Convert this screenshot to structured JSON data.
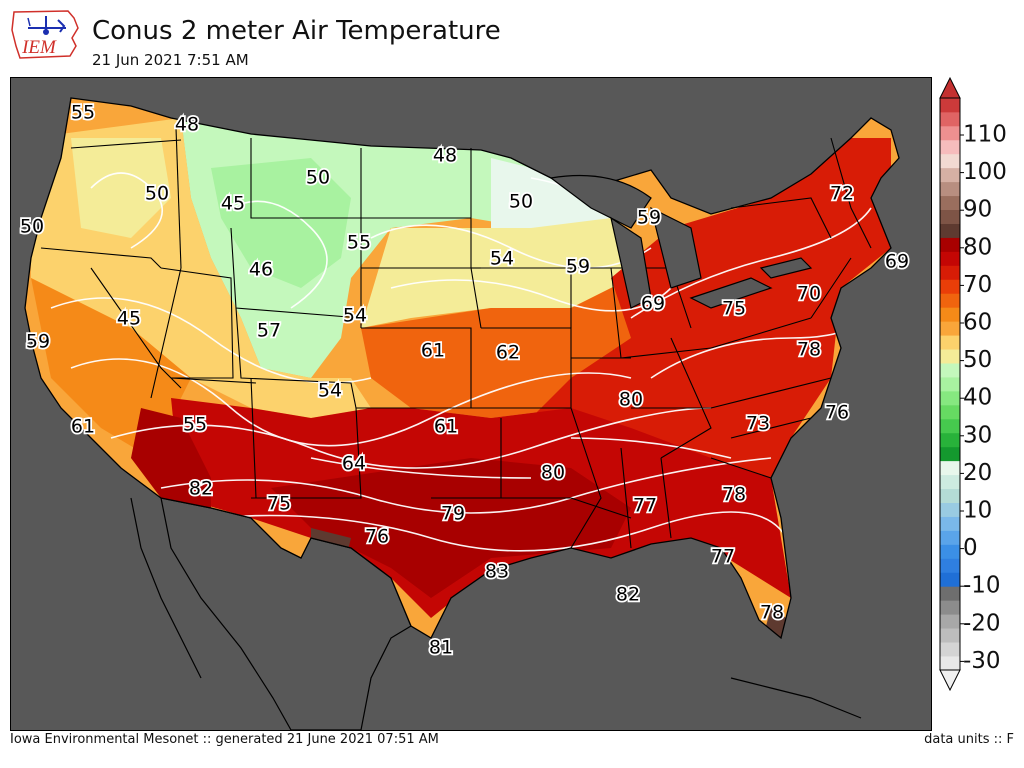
{
  "header": {
    "logo_text": "IEM",
    "title": "Conus 2 meter Air Temperature",
    "subtitle": "21 Jun 2021 7:51 AM"
  },
  "footer": {
    "left": "Iowa Environmental Mesonet :: generated 21 June 2021 07:51 AM",
    "right": "data units :: F"
  },
  "colorbar": {
    "ticks": [
      "110",
      "100",
      "90",
      "80",
      "70",
      "60",
      "50",
      "40",
      "30",
      "20",
      "10",
      "0",
      "-10",
      "-20",
      "-30"
    ],
    "bands": [
      "#e8e8e8",
      "#d4d4d4",
      "#bdbdbd",
      "#a8a8a8",
      "#8c8c8c",
      "#6e6e6e",
      "#1f6fd6",
      "#2f7fe0",
      "#3b8fe6",
      "#5aa4ea",
      "#7ab8ea",
      "#99cbe2",
      "#b4dcd6",
      "#cdebe0",
      "#e8f7ec",
      "#14992e",
      "#28b23a",
      "#46c94e",
      "#66da62",
      "#86e880",
      "#a8f2a0",
      "#c4f8bc",
      "#f4ec98",
      "#fcd26c",
      "#f9a63a",
      "#f58a18",
      "#f0640e",
      "#ea3e08",
      "#d81c06",
      "#c40604",
      "#a80000",
      "#5e3a30",
      "#7e5446",
      "#9a6e5e",
      "#b88e80",
      "#d6b0a4",
      "#f2dad2",
      "#f6bcbc",
      "#ee9090",
      "#e06464",
      "#cc3a3a"
    ],
    "top_arrow_color": "#c43030",
    "bottom_arrow_color": "#f0f0f0"
  },
  "map": {
    "background_color": "#585858",
    "labels": [
      {
        "v": "55"
      },
      {
        "v": "48"
      },
      {
        "v": "48"
      },
      {
        "v": "50"
      },
      {
        "v": "50"
      },
      {
        "v": "50"
      },
      {
        "v": "45"
      },
      {
        "v": "50"
      },
      {
        "v": "59"
      },
      {
        "v": "55"
      },
      {
        "v": "54"
      },
      {
        "v": "59"
      },
      {
        "v": "46"
      },
      {
        "v": "72"
      },
      {
        "v": "69"
      },
      {
        "v": "69"
      },
      {
        "v": "75"
      },
      {
        "v": "70"
      },
      {
        "v": "45"
      },
      {
        "v": "57"
      },
      {
        "v": "54"
      },
      {
        "v": "59"
      },
      {
        "v": "61"
      },
      {
        "v": "62"
      },
      {
        "v": "78"
      },
      {
        "v": "54"
      },
      {
        "v": "80"
      },
      {
        "v": "61"
      },
      {
        "v": "55"
      },
      {
        "v": "61"
      },
      {
        "v": "76"
      },
      {
        "v": "73"
      },
      {
        "v": "64"
      },
      {
        "v": "80"
      },
      {
        "v": "82"
      },
      {
        "v": "75"
      },
      {
        "v": "79"
      },
      {
        "v": "77"
      },
      {
        "v": "78"
      },
      {
        "v": "76"
      },
      {
        "v": "77"
      },
      {
        "v": "83"
      },
      {
        "v": "82"
      },
      {
        "v": "78"
      },
      {
        "v": "81"
      }
    ]
  }
}
